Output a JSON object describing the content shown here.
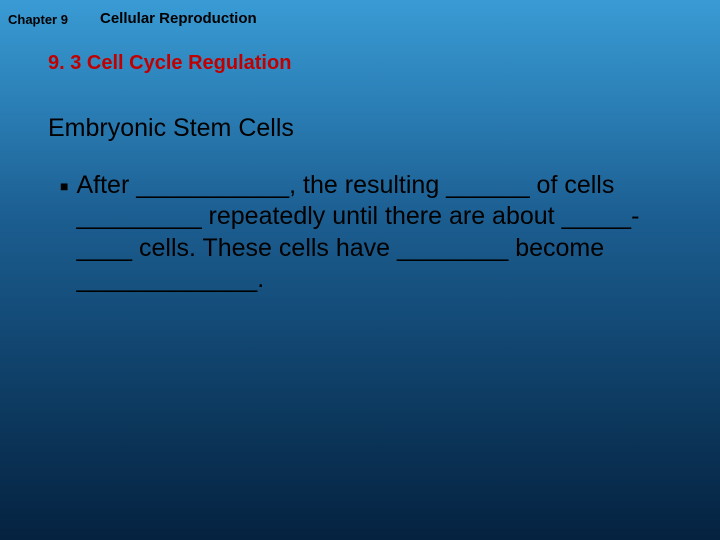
{
  "slide": {
    "background_gradient_top": "#3a9bd4",
    "background_gradient_bottom": "#052240",
    "chapter_label": "Chapter 9",
    "chapter_title": "Cellular Reproduction",
    "section_title": "9. 3 Cell Cycle Regulation",
    "subheading": "Embryonic Stem Cells",
    "bullet_marker": "■",
    "body_text": "After ___________, the resulting ______ of cells _________ repeatedly until there are about        _____-____ cells.  These cells have ________ become _____________.",
    "title_color": "#c00000",
    "text_color": "#000000",
    "chapter_label_fontsize": 13,
    "chapter_title_fontsize": 15,
    "section_title_fontsize": 20,
    "subheading_fontsize": 25,
    "body_fontsize": 25
  }
}
